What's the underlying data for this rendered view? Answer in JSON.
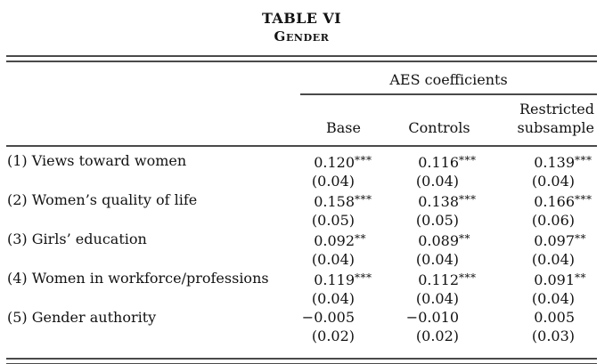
{
  "title": "TABLE VI",
  "subtitle": "Gender",
  "table": {
    "group_header": "AES coefficients",
    "col_headers": [
      "Base",
      "Controls",
      "Restricted\nsubsample"
    ],
    "rows": [
      {
        "label": "(1) Views toward women",
        "cells": [
          {
            "coef": "0.120",
            "stars": "***",
            "se": "(0.04)"
          },
          {
            "coef": "0.116",
            "stars": "***",
            "se": "(0.04)"
          },
          {
            "coef": "0.139",
            "stars": "***",
            "se": "(0.04)"
          }
        ]
      },
      {
        "label": "(2) Women’s quality of life",
        "cells": [
          {
            "coef": "0.158",
            "stars": "***",
            "se": "(0.05)"
          },
          {
            "coef": "0.138",
            "stars": "***",
            "se": "(0.05)"
          },
          {
            "coef": "0.166",
            "stars": "***",
            "se": "(0.06)"
          }
        ]
      },
      {
        "label": "(3) Girls’ education",
        "cells": [
          {
            "coef": "0.092",
            "stars": "**",
            "se": "(0.04)"
          },
          {
            "coef": "0.089",
            "stars": "**",
            "se": "(0.04)"
          },
          {
            "coef": "0.097",
            "stars": "**",
            "se": "(0.04)"
          }
        ]
      },
      {
        "label": "(4) Women in workforce/professions",
        "cells": [
          {
            "coef": "0.119",
            "stars": "***",
            "se": "(0.04)"
          },
          {
            "coef": "0.112",
            "stars": "***",
            "se": "(0.04)"
          },
          {
            "coef": "0.091",
            "stars": "**",
            "se": "(0.04)"
          }
        ]
      },
      {
        "label": "(5) Gender authority",
        "cells": [
          {
            "coef": "−0.005",
            "stars": "",
            "se": "(0.02)"
          },
          {
            "coef": "−0.010",
            "stars": "",
            "se": "(0.02)"
          },
          {
            "coef": "0.005",
            "stars": "",
            "se": "(0.03)"
          }
        ]
      }
    ]
  },
  "colors": {
    "text": "#121212",
    "rule": "#4a4a4a",
    "background": "#ffffff"
  }
}
